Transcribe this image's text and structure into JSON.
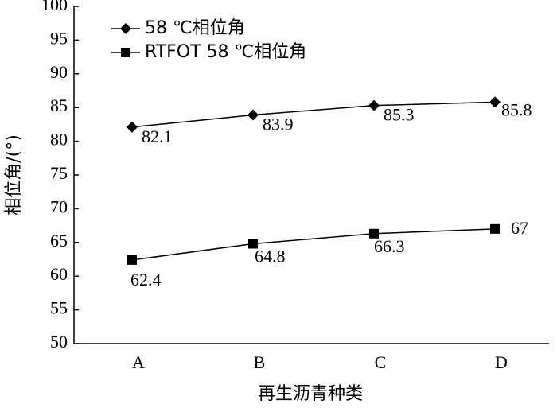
{
  "chart_data": {
    "type": "line",
    "x_label": "再生沥青种类",
    "y_label": "相位角/(°)",
    "categories": [
      "A",
      "B",
      "C",
      "D"
    ],
    "series": [
      {
        "name": "58 ℃相位角",
        "color": "#000000",
        "marker": "diamond",
        "values": [
          82.1,
          83.9,
          85.3,
          85.8
        ]
      },
      {
        "name": "RTFOT 58 ℃相位角",
        "color": "#000000",
        "marker": "square",
        "values": [
          62.4,
          64.8,
          66.3,
          67
        ]
      }
    ],
    "ylim": [
      50,
      100
    ],
    "yticks": [
      50,
      55,
      60,
      65,
      70,
      75,
      80,
      85,
      90,
      95,
      100
    ],
    "legend": "top-left"
  }
}
